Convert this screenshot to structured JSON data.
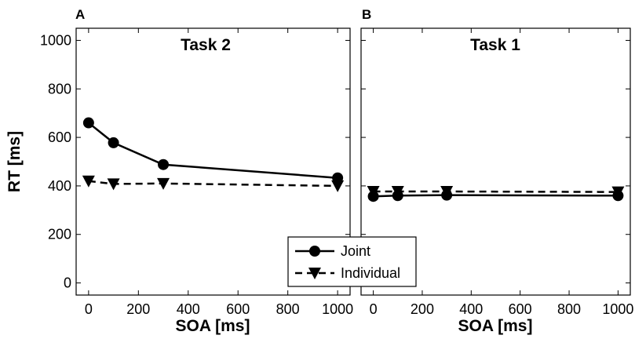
{
  "chart_data": [
    {
      "type": "line",
      "panel_label": "A",
      "title": "Task 2",
      "xlabel": "SOA [ms]",
      "ylabel": "RT [ms]",
      "xlim": [
        -50,
        1050
      ],
      "ylim": [
        -50,
        1050
      ],
      "x_ticks": [
        0,
        200,
        400,
        600,
        800,
        1000
      ],
      "y_ticks": [
        0,
        200,
        400,
        600,
        800,
        1000
      ],
      "grid": false,
      "series": [
        {
          "name": "Joint",
          "marker": "circle",
          "line": "solid",
          "x": [
            0,
            100,
            300,
            1000
          ],
          "values": [
            660,
            578,
            488,
            433
          ]
        },
        {
          "name": "Individual",
          "marker": "triangle-down",
          "line": "dashed",
          "x": [
            0,
            100,
            300,
            1000
          ],
          "values": [
            420,
            408,
            410,
            400
          ]
        }
      ]
    },
    {
      "type": "line",
      "panel_label": "B",
      "title": "Task 1",
      "xlabel": "SOA [ms]",
      "ylabel": "",
      "xlim": [
        -50,
        1050
      ],
      "ylim": [
        -50,
        1050
      ],
      "x_ticks": [
        0,
        200,
        400,
        600,
        800,
        1000
      ],
      "y_ticks": [
        0,
        200,
        400,
        600,
        800,
        1000
      ],
      "grid": false,
      "series": [
        {
          "name": "Joint",
          "marker": "circle",
          "line": "solid",
          "x": [
            0,
            100,
            300,
            1000
          ],
          "values": [
            357,
            360,
            362,
            360
          ]
        },
        {
          "name": "Individual",
          "marker": "triangle-down",
          "line": "dashed",
          "x": [
            0,
            100,
            300,
            1000
          ],
          "values": [
            377,
            377,
            377,
            375
          ]
        }
      ]
    }
  ],
  "legend": {
    "placement": "bottom-center",
    "entries": [
      {
        "label": "Joint",
        "marker": "circle",
        "line": "solid"
      },
      {
        "label": "Individual",
        "marker": "triangle-down",
        "line": "dashed"
      }
    ]
  },
  "colors": {
    "ink": "#000000",
    "background": "#ffffff"
  }
}
